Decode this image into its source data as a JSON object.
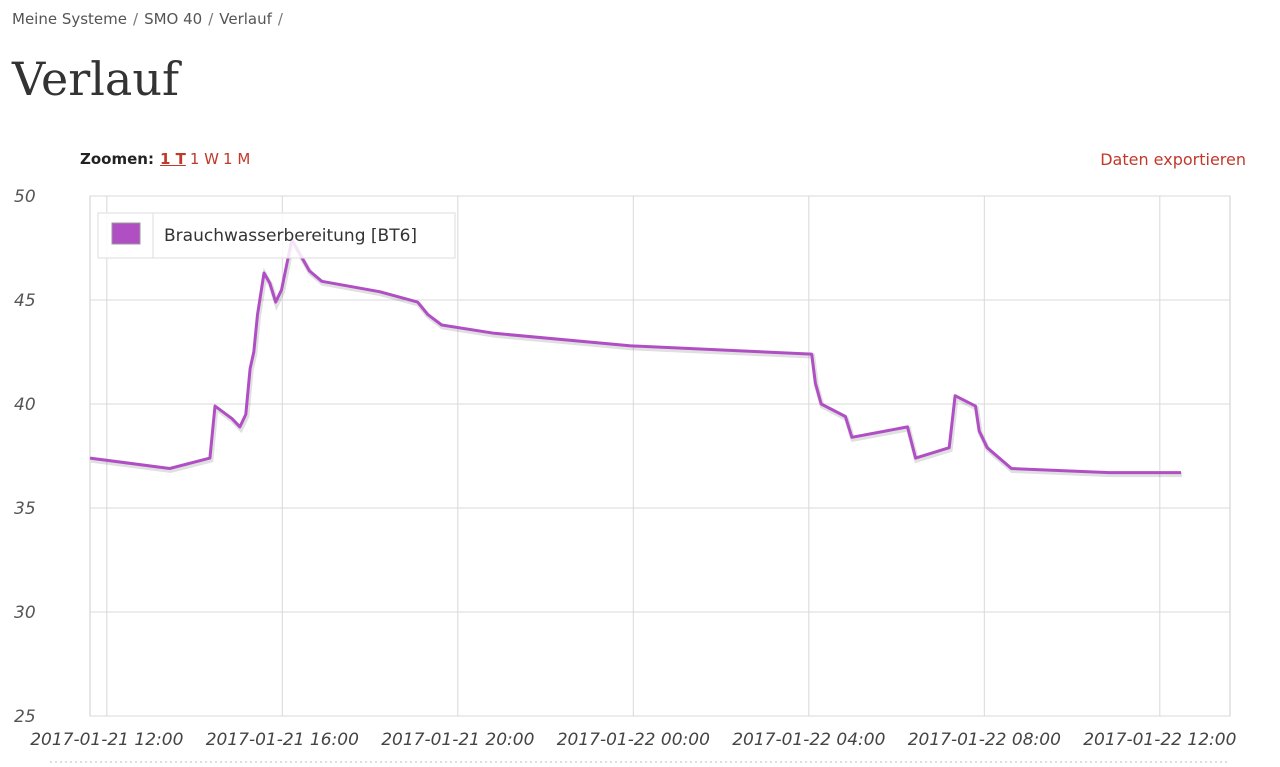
{
  "breadcrumb": {
    "items": [
      "Meine Systeme",
      "SMO 40",
      "Verlauf"
    ],
    "separator": "/"
  },
  "header": {
    "title": "Verlauf"
  },
  "toolbar": {
    "zoom_label": "Zoomen:",
    "zoom_options": [
      "1 T",
      "1 W",
      "1 M"
    ],
    "export": "Daten exportieren"
  },
  "chart_data": {
    "type": "line",
    "x": [
      "2017-01-21 11:37",
      "2017-01-21 13:26",
      "2017-01-21 14:21",
      "2017-01-21 14:28",
      "2017-01-21 14:51",
      "2017-01-21 15:02",
      "2017-01-21 15:10",
      "2017-01-21 15:16",
      "2017-01-21 15:21",
      "2017-01-21 15:26",
      "2017-01-21 15:35",
      "2017-01-21 15:43",
      "2017-01-21 15:51",
      "2017-01-21 15:59",
      "2017-01-21 16:13",
      "2017-01-21 16:24",
      "2017-01-21 16:37",
      "2017-01-21 16:54",
      "2017-01-21 18:13",
      "2017-01-21 19:05",
      "2017-01-21 19:19",
      "2017-01-21 19:38",
      "2017-01-21 20:50",
      "2017-01-21 23:55",
      "2017-01-22 04:04",
      "2017-01-22 04:09",
      "2017-01-22 04:17",
      "2017-01-22 04:50",
      "2017-01-22 04:59",
      "2017-01-22 06:15",
      "2017-01-22 06:26",
      "2017-01-22 07:12",
      "2017-01-22 07:20",
      "2017-01-22 07:48",
      "2017-01-22 07:53",
      "2017-01-22 08:04",
      "2017-01-22 08:37",
      "2017-01-22 10:51",
      "2017-01-22 12:29"
    ],
    "series": [
      {
        "name": "Brauchwasserbereitung [BT6]",
        "color": "#b04fc4",
        "values": [
          37.4,
          36.9,
          37.4,
          39.9,
          39.3,
          38.9,
          39.5,
          41.7,
          42.5,
          44.3,
          46.3,
          45.8,
          44.9,
          45.5,
          47.9,
          47.2,
          46.4,
          45.9,
          45.4,
          44.9,
          44.3,
          43.8,
          43.4,
          42.8,
          42.4,
          41.0,
          40.0,
          39.4,
          38.4,
          38.9,
          37.4,
          37.9,
          40.4,
          39.9,
          38.7,
          37.9,
          36.9,
          36.7,
          36.7
        ]
      }
    ],
    "xlim": [
      "2017-01-21 11:37",
      "2017-01-22 13:36"
    ],
    "xticks": [
      "2017-01-21 12:00",
      "2017-01-21 16:00",
      "2017-01-21 20:00",
      "2017-01-22 00:00",
      "2017-01-22 04:00",
      "2017-01-22 08:00",
      "2017-01-22 12:00"
    ],
    "ylim": [
      25,
      50
    ],
    "yticks": [
      25,
      30,
      35,
      40,
      45,
      50
    ],
    "grid": true,
    "legend": "top-left"
  }
}
